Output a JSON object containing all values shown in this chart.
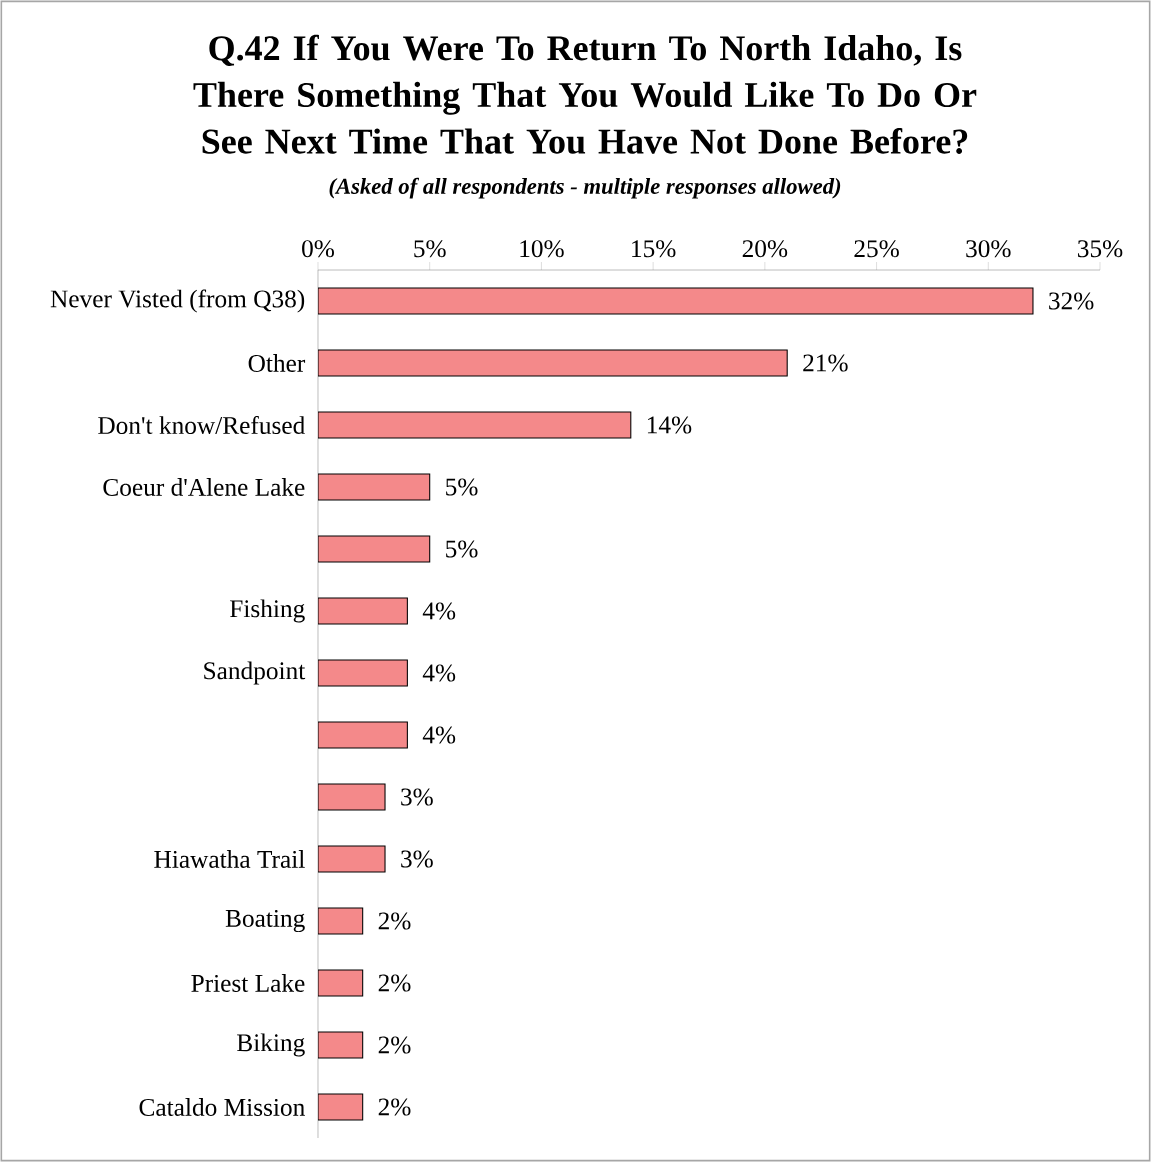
{
  "chart_data": {
    "type": "bar",
    "orientation": "horizontal",
    "title": "Q.42 If You Were To Return To North Idaho, Is There Something That You Would Like To Do Or See Next Time That You Have Not Done Before?",
    "subtitle": "(Asked of all respondents - multiple responses allowed)",
    "categories": [
      "Never Visted (from Q38)",
      "Other",
      "Don't know/Refused",
      "Coeur d'Alene Lake",
      null,
      "Fishing",
      "Sandpoint",
      null,
      null,
      "Hiawatha Trail",
      "Boating",
      "Priest Lake",
      "Biking",
      "Cataldo Mission"
    ],
    "values": [
      32,
      21,
      14,
      5,
      5,
      4,
      4,
      4,
      3,
      3,
      2,
      2,
      2,
      2
    ],
    "value_labels": [
      "32%",
      "21%",
      "14%",
      "5%",
      "5%",
      "4%",
      "4%",
      "4%",
      "3%",
      "3%",
      "2%",
      "2%",
      "2%",
      "2%"
    ],
    "color": "#f4898a",
    "xlim": [
      0,
      35
    ],
    "xticks": [
      {
        "value": 0,
        "label": "0%"
      },
      {
        "value": 5,
        "label": "5%"
      },
      {
        "value": 10,
        "label": "10%"
      },
      {
        "value": 15,
        "label": "15%"
      },
      {
        "value": 20,
        "label": "20%"
      },
      {
        "value": 25,
        "label": "25%"
      },
      {
        "value": 30,
        "label": "30%"
      },
      {
        "value": 35,
        "label": "35%"
      }
    ],
    "grid": false
  }
}
